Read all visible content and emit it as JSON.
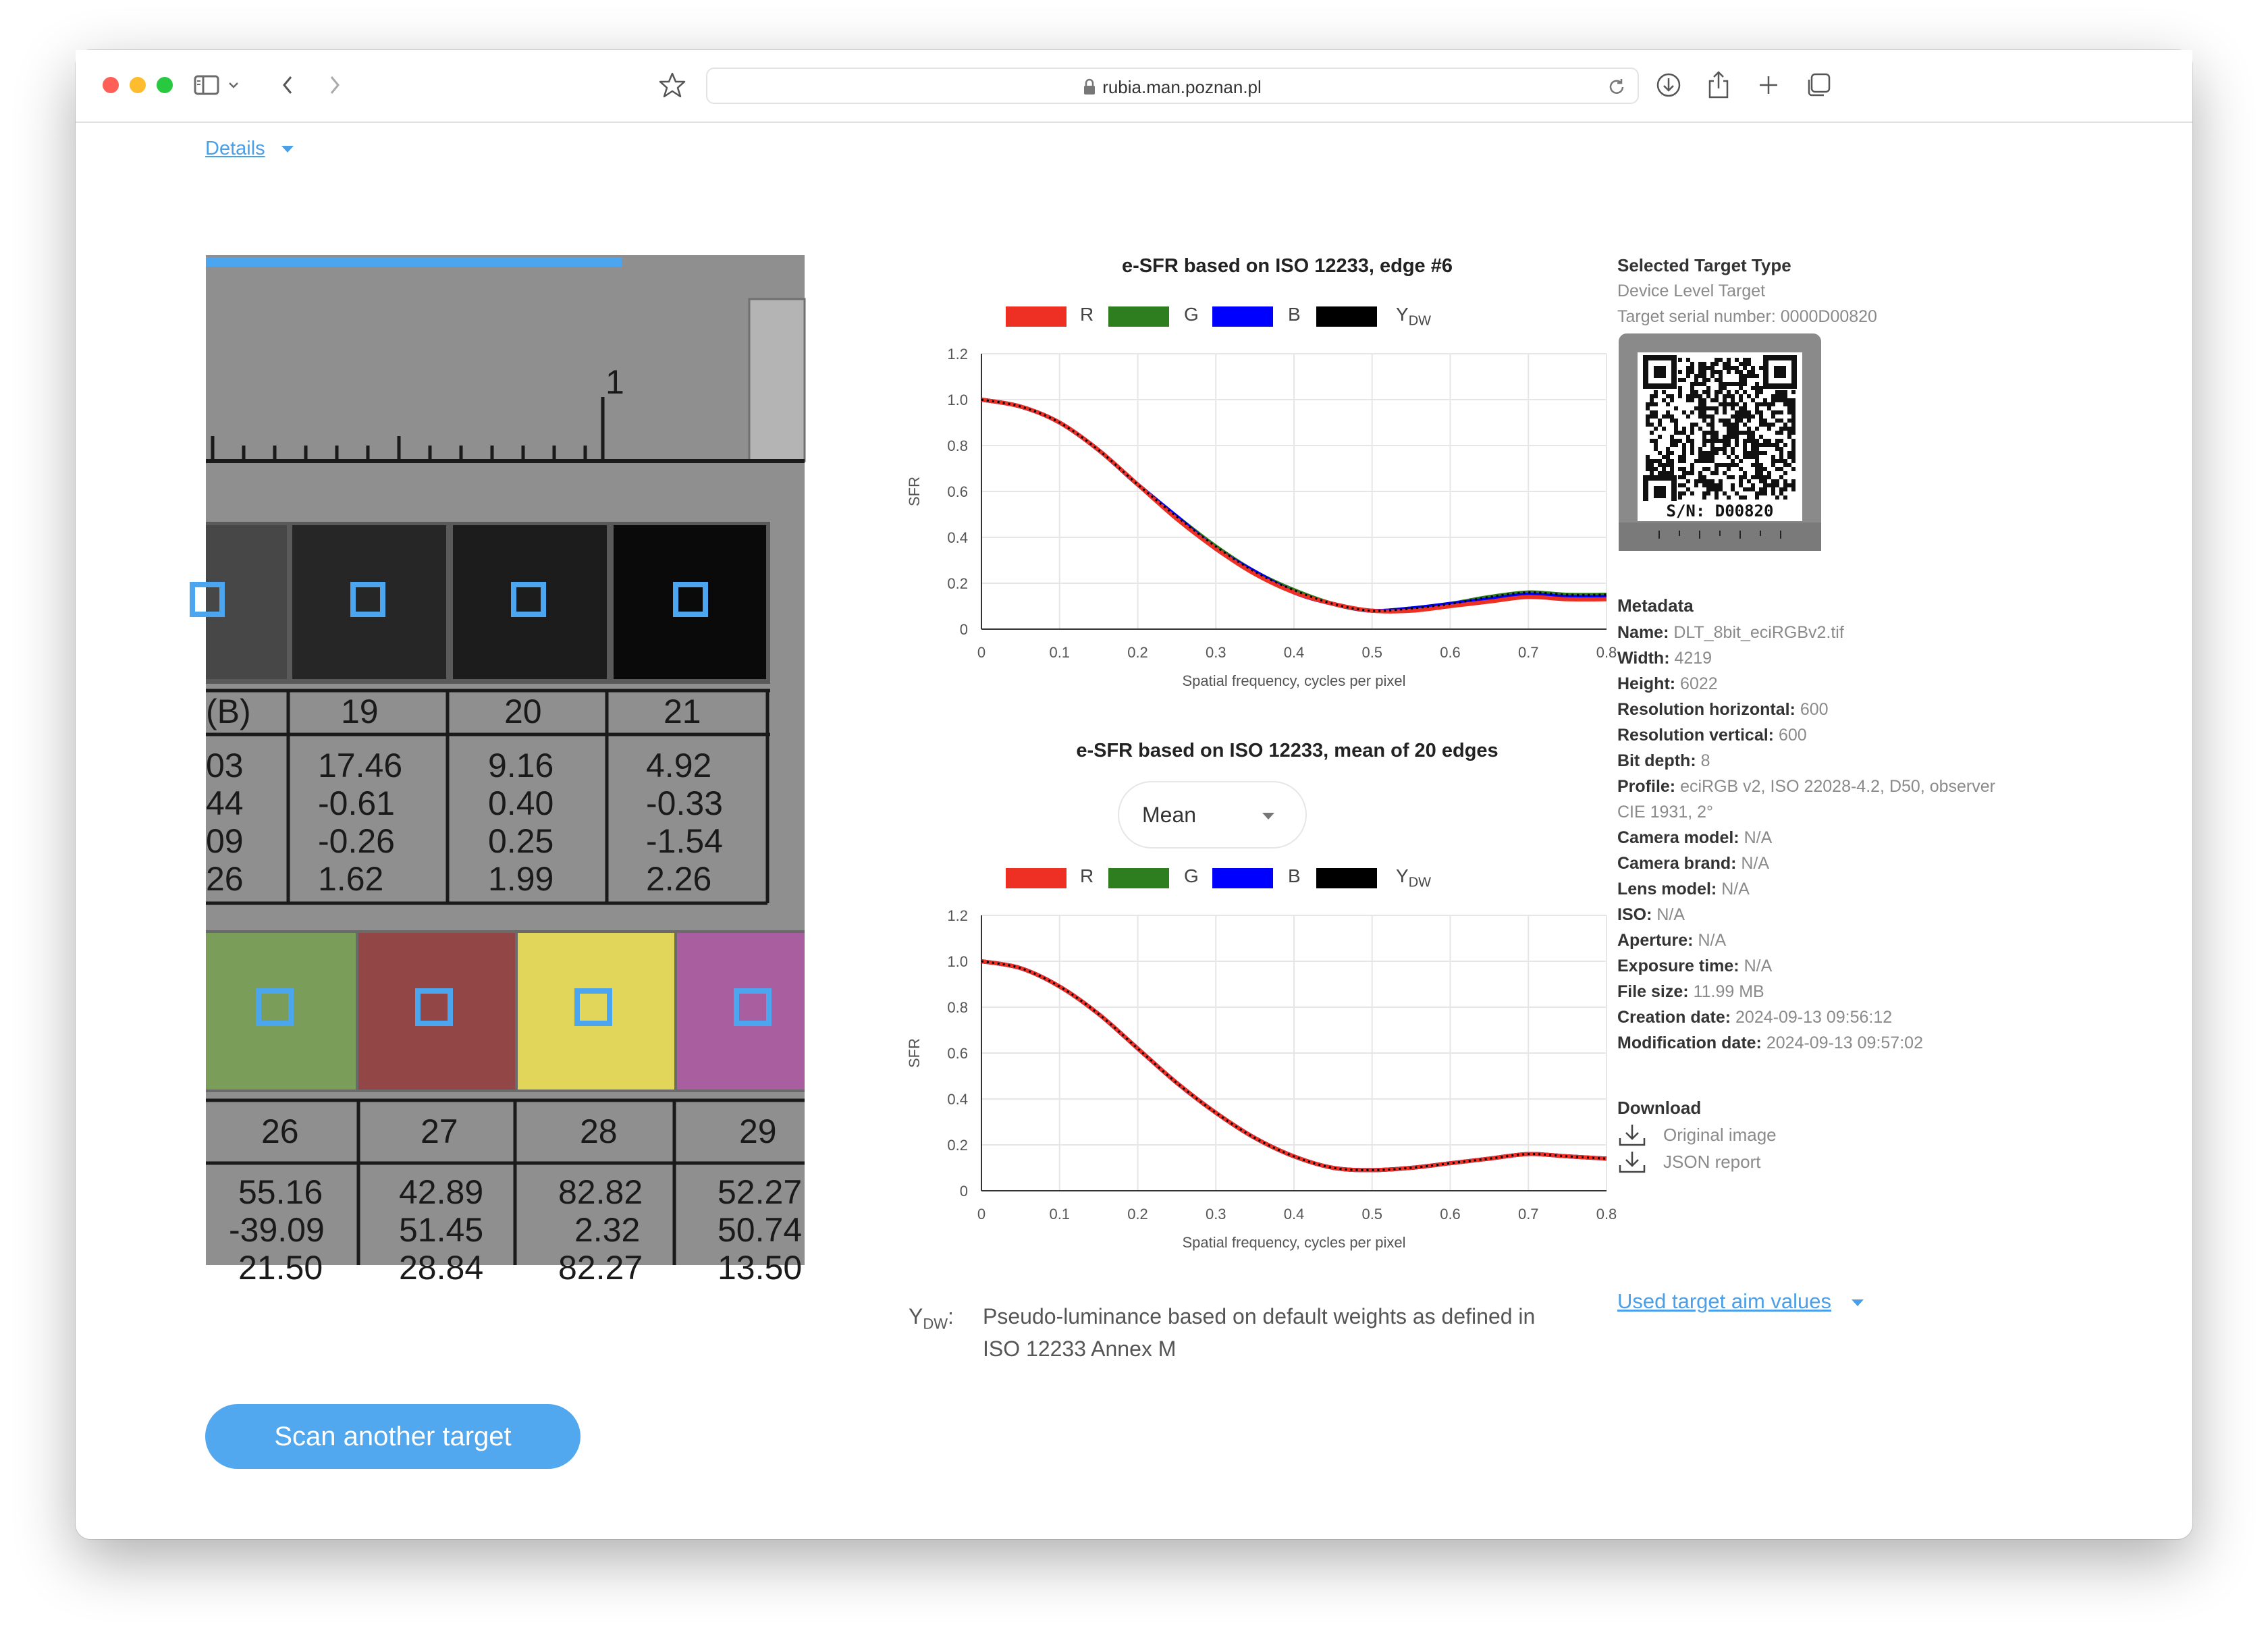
{
  "browser": {
    "url": "rubia.man.poznan.pl"
  },
  "details": {
    "label": "Details"
  },
  "photo": {
    "ruler_number": "1",
    "row1_headers": [
      "(B)",
      "19",
      "20",
      "21"
    ],
    "row1_values": [
      [
        "03",
        "44",
        "09",
        "26"
      ],
      [
        "17.46",
        "-0.61",
        "-0.26",
        "1.62"
      ],
      [
        "9.16",
        "0.40",
        "0.25",
        "1.99"
      ],
      [
        "4.92",
        "-0.33",
        "-1.54",
        "2.26"
      ]
    ],
    "row2_headers": [
      "26",
      "27",
      "28",
      "29"
    ],
    "row2_values": [
      [
        "55.16",
        "-39.09",
        "21.50"
      ],
      [
        "42.89",
        "51.45",
        "28.84"
      ],
      [
        "82.82",
        "2.32",
        "82.27"
      ],
      [
        "52.27",
        "50.74",
        "13.50"
      ]
    ],
    "patch_colors": [
      "#454545",
      "#262626",
      "#1b1b1b",
      "#0a0a0a"
    ],
    "patch_colors2": [
      "#7a9e5a",
      "#934646",
      "#e1d55a",
      "#a85e9f"
    ]
  },
  "charts": {
    "legend": [
      "R",
      "G",
      "B",
      "Y"
    ],
    "legend_sub": "DW",
    "colors": {
      "R": "#ee3024",
      "G": "#2e7d1e",
      "B": "#0000ff",
      "Y": "#000000"
    },
    "xlabel": "Spatial frequency, cycles per pixel",
    "ylabel": "SFR",
    "xticks": [
      "0",
      "0.1",
      "0.2",
      "0.3",
      "0.4",
      "0.5",
      "0.6",
      "0.7",
      "0.8"
    ],
    "yticks": [
      "0",
      "0.2",
      "0.4",
      "0.6",
      "0.8",
      "1.0",
      "1.2"
    ],
    "chart1_title": "e-SFR based on ISO 12233, edge #6",
    "chart2_title": "e-SFR based on ISO 12233, mean of 20 edges",
    "select_value": "Mean"
  },
  "chart_data": [
    {
      "type": "line",
      "title": "e-SFR based on ISO 12233, edge #6",
      "xlabel": "Spatial frequency, cycles per pixel",
      "ylabel": "SFR",
      "xlim": [
        0,
        0.8
      ],
      "ylim": [
        0,
        1.2
      ],
      "x": [
        0,
        0.05,
        0.1,
        0.15,
        0.2,
        0.25,
        0.3,
        0.35,
        0.4,
        0.45,
        0.5,
        0.55,
        0.6,
        0.65,
        0.7,
        0.75,
        0.8
      ],
      "series": [
        {
          "name": "R",
          "values": [
            1.0,
            0.97,
            0.9,
            0.78,
            0.63,
            0.48,
            0.35,
            0.24,
            0.16,
            0.11,
            0.08,
            0.08,
            0.1,
            0.12,
            0.14,
            0.13,
            0.13
          ]
        },
        {
          "name": "G",
          "values": [
            1.0,
            0.97,
            0.9,
            0.78,
            0.63,
            0.49,
            0.36,
            0.25,
            0.17,
            0.11,
            0.08,
            0.09,
            0.11,
            0.14,
            0.16,
            0.15,
            0.15
          ]
        },
        {
          "name": "B",
          "values": [
            1.0,
            0.97,
            0.9,
            0.78,
            0.63,
            0.49,
            0.35,
            0.25,
            0.16,
            0.11,
            0.08,
            0.09,
            0.11,
            0.13,
            0.15,
            0.14,
            0.14
          ]
        },
        {
          "name": "YDW",
          "values": [
            1.0,
            0.97,
            0.9,
            0.78,
            0.63,
            0.49,
            0.36,
            0.25,
            0.17,
            0.11,
            0.08,
            0.09,
            0.11,
            0.14,
            0.16,
            0.15,
            0.15
          ]
        }
      ],
      "grid": true,
      "legend": "top"
    },
    {
      "type": "line",
      "title": "e-SFR based on ISO 12233, mean of 20 edges",
      "xlabel": "Spatial frequency, cycles per pixel",
      "ylabel": "SFR",
      "xlim": [
        0,
        0.8
      ],
      "ylim": [
        0,
        1.2
      ],
      "x": [
        0,
        0.05,
        0.1,
        0.15,
        0.2,
        0.25,
        0.3,
        0.35,
        0.4,
        0.45,
        0.5,
        0.55,
        0.6,
        0.65,
        0.7,
        0.75,
        0.8
      ],
      "series": [
        {
          "name": "R",
          "values": [
            1.0,
            0.97,
            0.89,
            0.77,
            0.62,
            0.47,
            0.34,
            0.23,
            0.15,
            0.1,
            0.09,
            0.1,
            0.12,
            0.14,
            0.16,
            0.15,
            0.14
          ]
        },
        {
          "name": "G",
          "values": [
            1.0,
            0.97,
            0.89,
            0.77,
            0.62,
            0.47,
            0.34,
            0.23,
            0.15,
            0.1,
            0.09,
            0.1,
            0.12,
            0.14,
            0.16,
            0.15,
            0.14
          ]
        },
        {
          "name": "B",
          "values": [
            1.0,
            0.97,
            0.89,
            0.77,
            0.62,
            0.47,
            0.34,
            0.23,
            0.15,
            0.1,
            0.09,
            0.1,
            0.12,
            0.14,
            0.16,
            0.15,
            0.14
          ]
        },
        {
          "name": "YDW",
          "values": [
            1.0,
            0.97,
            0.89,
            0.77,
            0.62,
            0.47,
            0.34,
            0.23,
            0.15,
            0.1,
            0.09,
            0.1,
            0.12,
            0.14,
            0.16,
            0.15,
            0.14
          ]
        }
      ],
      "grid": true,
      "legend": "top"
    }
  ],
  "target": {
    "heading": "Selected Target Type",
    "type": "Device Level Target",
    "serial": "Target serial number: 0000D00820",
    "qr_label": "S/N: D00820"
  },
  "metadata": {
    "heading": "Metadata",
    "rows": [
      {
        "k": "Name:",
        "v": "DLT_8bit_eciRGBv2.tif"
      },
      {
        "k": "Width:",
        "v": "4219"
      },
      {
        "k": "Height:",
        "v": "6022"
      },
      {
        "k": "Resolution horizontal:",
        "v": "600"
      },
      {
        "k": "Resolution vertical:",
        "v": "600"
      },
      {
        "k": "Bit depth:",
        "v": "8"
      },
      {
        "k": "Profile:",
        "v": "eciRGB v2, ISO 22028-4.2, D50, observer"
      },
      {
        "k": "",
        "v": "CIE 1931, 2°"
      },
      {
        "k": "Camera model:",
        "v": "N/A"
      },
      {
        "k": "Camera brand:",
        "v": "N/A"
      },
      {
        "k": "Lens model:",
        "v": "N/A"
      },
      {
        "k": "ISO:",
        "v": "N/A"
      },
      {
        "k": "Aperture:",
        "v": "N/A"
      },
      {
        "k": "Exposure time:",
        "v": "N/A"
      },
      {
        "k": "File size:",
        "v": "11.99 MB"
      },
      {
        "k": "Creation date:",
        "v": "2024-09-13 09:56:12"
      },
      {
        "k": "Modification date:",
        "v": "2024-09-13 09:57:02"
      }
    ]
  },
  "download": {
    "heading": "Download",
    "original": "Original image",
    "json": "JSON report"
  },
  "used_target": {
    "label": "Used target aim values"
  },
  "ydw_note": {
    "symbol": "Y",
    "sub": "DW",
    "colon": ":",
    "line1": "Pseudo-luminance based on default weights as defined in",
    "line2": "ISO 12233 Annex M"
  },
  "scan_button": {
    "label": "Scan another target"
  }
}
